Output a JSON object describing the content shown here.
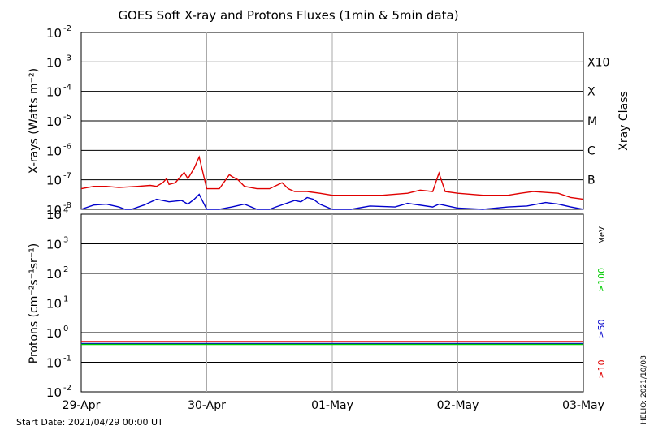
{
  "chart_data": [
    {
      "type": "line",
      "title": "GOES Soft X-ray and Protons Fluxes   (1min & 5min data)",
      "ylabel": "X-rays (Watts m⁻²)",
      "yscale": "log",
      "ylim": [
        1e-08,
        0.01
      ],
      "y_ticks": [
        {
          "base": "10",
          "exp": "-2"
        },
        {
          "base": "10",
          "exp": "-3"
        },
        {
          "base": "10",
          "exp": "-4"
        },
        {
          "base": "10",
          "exp": "-5"
        },
        {
          "base": "10",
          "exp": "-6"
        },
        {
          "base": "10",
          "exp": "-7"
        },
        {
          "base": "10",
          "exp": "-8"
        }
      ],
      "right_axis_label": "Xray Class",
      "classes": [
        "X10",
        "X",
        "M",
        "C",
        "B"
      ],
      "xlim": [
        "2021-04-29 00:00",
        "2021-05-03 00:00"
      ],
      "x_ticks": [
        "29-Apr",
        "30-Apr",
        "01-May",
        "02-May",
        "03-May"
      ],
      "grid": true,
      "series": [
        {
          "color": "#e00000",
          "x_days": [
            0,
            0.1,
            0.2,
            0.3,
            0.45,
            0.55,
            0.6,
            0.65,
            0.68,
            0.7,
            0.75,
            0.82,
            0.85,
            0.9,
            0.94,
            1.0,
            1.1,
            1.18,
            1.2,
            1.25,
            1.3,
            1.4,
            1.5,
            1.6,
            1.65,
            1.7,
            1.8,
            1.9,
            2.0,
            2.2,
            2.4,
            2.6,
            2.7,
            2.8,
            2.85,
            2.9,
            3.0,
            3.2,
            3.4,
            3.5,
            3.6,
            3.8,
            3.9,
            4.0
          ],
          "values": [
            5e-08,
            6e-08,
            6e-08,
            5.5e-08,
            6e-08,
            6.5e-08,
            6e-08,
            8e-08,
            1.1e-07,
            7e-08,
            8e-08,
            1.8e-07,
            1.1e-07,
            2.5e-07,
            6e-07,
            5e-08,
            5e-08,
            1.5e-07,
            1.3e-07,
            1e-07,
            6e-08,
            5e-08,
            5e-08,
            8e-08,
            5e-08,
            4e-08,
            4e-08,
            3.5e-08,
            3e-08,
            3e-08,
            3e-08,
            3.5e-08,
            4.5e-08,
            4e-08,
            1.7e-07,
            4e-08,
            3.5e-08,
            3e-08,
            3e-08,
            3.5e-08,
            4e-08,
            3.5e-08,
            2.5e-08,
            2.2e-08
          ]
        },
        {
          "color": "#0000cc",
          "x_days": [
            0,
            0.1,
            0.2,
            0.3,
            0.35,
            0.4,
            0.5,
            0.6,
            0.7,
            0.8,
            0.85,
            0.9,
            0.94,
            1.0,
            1.1,
            1.2,
            1.3,
            1.4,
            1.5,
            1.55,
            1.7,
            1.75,
            1.8,
            1.85,
            1.9,
            2.0,
            2.15,
            2.3,
            2.5,
            2.6,
            2.8,
            2.85,
            3.0,
            3.2,
            3.4,
            3.55,
            3.7,
            3.8,
            3.9,
            4.0
          ],
          "values": [
            1e-08,
            1.4e-08,
            1.5e-08,
            1.2e-08,
            1e-08,
            1e-08,
            1.4e-08,
            2.2e-08,
            1.8e-08,
            2e-08,
            1.5e-08,
            2.2e-08,
            3.2e-08,
            1e-08,
            1e-08,
            1.2e-08,
            1.5e-08,
            1e-08,
            1e-08,
            1.2e-08,
            2e-08,
            1.8e-08,
            2.5e-08,
            2.2e-08,
            1.5e-08,
            1e-08,
            1e-08,
            1.3e-08,
            1.2e-08,
            1.6e-08,
            1.2e-08,
            1.5e-08,
            1.1e-08,
            1e-08,
            1.2e-08,
            1.3e-08,
            1.7e-08,
            1.5e-08,
            1.2e-08,
            1e-08
          ]
        }
      ]
    },
    {
      "type": "line",
      "ylabel": "Protons (cm⁻²s⁻¹sr⁻¹)",
      "yscale": "log",
      "ylim": [
        0.01,
        10000
      ],
      "y_ticks": [
        {
          "base": "10",
          "exp": "4"
        },
        {
          "base": "10",
          "exp": "3"
        },
        {
          "base": "10",
          "exp": "2"
        },
        {
          "base": "10",
          "exp": "1"
        },
        {
          "base": "10",
          "exp": "0"
        },
        {
          "base": "10",
          "exp": "-1"
        },
        {
          "base": "10",
          "exp": "-2"
        }
      ],
      "threshold": 10,
      "right_axis_label": "MeV",
      "channel_labels": [
        {
          "text": "≥100",
          "color": "#00cc00"
        },
        {
          "text": "≥50",
          "color": "#0000cc"
        },
        {
          "text": "≥10",
          "color": "#e00000"
        }
      ],
      "xlim": [
        "2021-04-29 00:00",
        "2021-05-03 00:00"
      ],
      "x_ticks": [
        "29-Apr",
        "30-Apr",
        "01-May",
        "02-May",
        "03-May"
      ],
      "grid": true,
      "series": [
        {
          "color": "#e00000",
          "x_days": [
            0,
            4
          ],
          "values": [
            0.5,
            0.5
          ]
        },
        {
          "color": "#0000cc",
          "x_days": [
            0,
            4
          ],
          "values": [
            0.43,
            0.43
          ]
        },
        {
          "color": "#00cc00",
          "x_days": [
            0,
            4
          ],
          "values": [
            0.4,
            0.4
          ]
        }
      ]
    }
  ],
  "footer": {
    "start_date": "Start Date: 2021/04/29 00:00 UT",
    "credit": "HELIO: 2021/10/08"
  }
}
